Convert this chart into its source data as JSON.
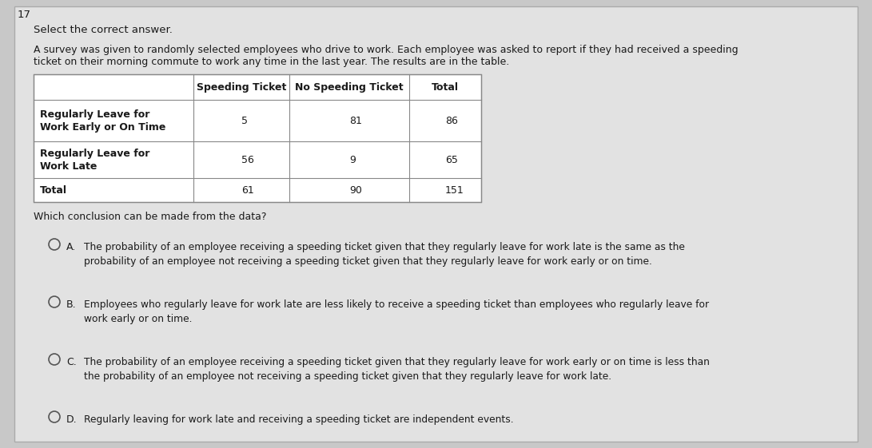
{
  "page_number": "17",
  "header_text": "Select the correct answer.",
  "desc_line1": "A survey was given to randomly selected employees who drive to work. Each employee was asked to report if they had received a speeding",
  "desc_line2": "ticket on their morning commute to work any time in the last year. The results are in the table.",
  "table_col_headers": [
    "",
    "Speeding Ticket",
    "No Speeding Ticket",
    "Total"
  ],
  "table_rows": [
    [
      "Regularly Leave for\nWork Early or On Time",
      "5",
      "81",
      "86"
    ],
    [
      "Regularly Leave for\nWork Late",
      "56",
      "9",
      "65"
    ],
    [
      "Total",
      "61",
      "90",
      "151"
    ]
  ],
  "question": "Which conclusion can be made from the data?",
  "options": [
    {
      "label": "A.",
      "text": "The probability of an employee receiving a speeding ticket given that they regularly leave for work late is the same as the\nprobability of an employee not receiving a speeding ticket given that they regularly leave for work early or on time."
    },
    {
      "label": "B.",
      "text": "Employees who regularly leave for work late are less likely to receive a speeding ticket than employees who regularly leave for\nwork early or on time."
    },
    {
      "label": "C.",
      "text": "The probability of an employee receiving a speeding ticket given that they regularly leave for work early or on time is less than\nthe probability of an employee not receiving a speeding ticket given that they regularly leave for work late."
    },
    {
      "label": "D.",
      "text": "Regularly leaving for work late and receiving a speeding ticket are independent events."
    }
  ],
  "bg_outer": "#c8c8c8",
  "bg_inner": "#e2e2e2",
  "table_bg": "#ffffff",
  "border_color": "#888888",
  "font_color": "#1a1a1a",
  "circle_color": "#555555"
}
